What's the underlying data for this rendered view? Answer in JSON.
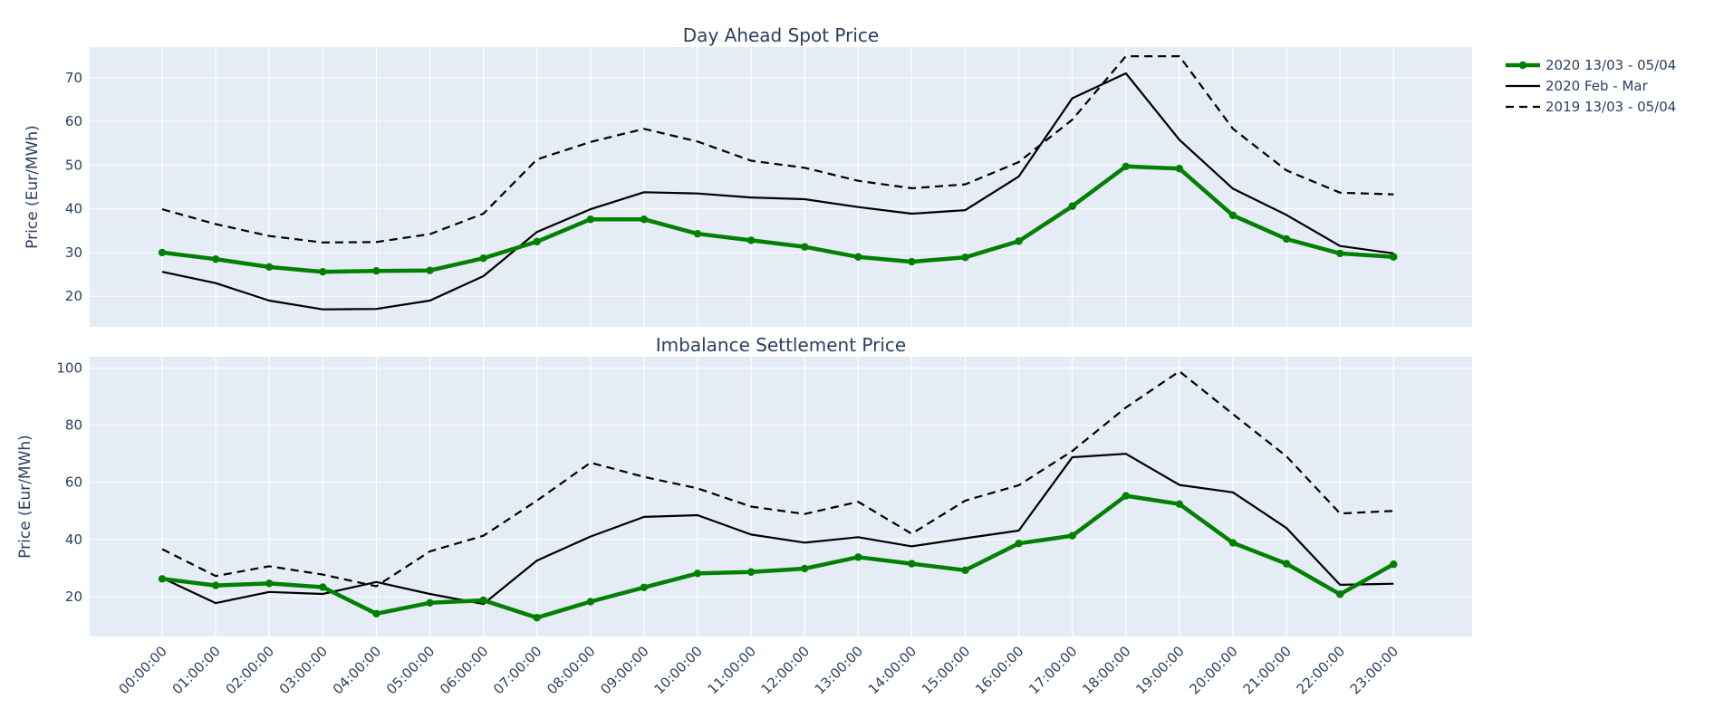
{
  "chart_data": [
    {
      "type": "line",
      "title": "Day Ahead Spot Price",
      "xlabel": "",
      "ylabel": "Price (Eur/MWh)",
      "ylim": [
        13,
        77
      ],
      "yticks": [
        20,
        30,
        40,
        50,
        60,
        70
      ],
      "grid": true,
      "legend_position": "top-right",
      "x": [
        "00:00:00",
        "01:00:00",
        "02:00:00",
        "03:00:00",
        "04:00:00",
        "05:00:00",
        "06:00:00",
        "07:00:00",
        "08:00:00",
        "09:00:00",
        "10:00:00",
        "11:00:00",
        "12:00:00",
        "13:00:00",
        "14:00:00",
        "15:00:00",
        "16:00:00",
        "17:00:00",
        "18:00:00",
        "19:00:00",
        "20:00:00",
        "21:00:00",
        "22:00:00",
        "23:00:00"
      ],
      "series": [
        {
          "name": "2020 13/03 - 05/04",
          "color": "#008000",
          "style": "solid-markers",
          "values": [
            30.0,
            28.5,
            26.7,
            25.6,
            25.8,
            25.9,
            28.7,
            32.5,
            37.6,
            37.6,
            34.3,
            32.8,
            31.3,
            29.0,
            27.9,
            28.9,
            32.6,
            40.6,
            49.7,
            49.2,
            38.5,
            33.1,
            29.8,
            29.0
          ]
        },
        {
          "name": "2020 Feb - Mar",
          "color": "#000000",
          "style": "solid",
          "values": [
            25.6,
            23.0,
            19.0,
            17.0,
            17.1,
            19.0,
            24.6,
            34.7,
            39.9,
            43.8,
            43.5,
            42.6,
            42.2,
            40.4,
            38.9,
            39.7,
            47.4,
            65.3,
            71.0,
            55.8,
            44.6,
            38.6,
            31.5,
            29.8
          ]
        },
        {
          "name": "2019 13/03 - 05/04",
          "color": "#000000",
          "style": "dashed",
          "values": [
            39.9,
            36.5,
            33.8,
            32.3,
            32.4,
            34.2,
            38.9,
            51.3,
            55.3,
            58.3,
            55.4,
            51.0,
            49.4,
            46.4,
            44.7,
            45.6,
            50.7,
            60.4,
            74.9,
            74.9,
            58.3,
            48.8,
            43.7,
            43.3
          ]
        }
      ]
    },
    {
      "type": "line",
      "title": "Imbalance Settlement Price",
      "xlabel": "",
      "ylabel": "Price (Eur/MWh)",
      "ylim": [
        6,
        104
      ],
      "yticks": [
        20,
        40,
        60,
        80,
        100
      ],
      "grid": true,
      "x": [
        "00:00:00",
        "01:00:00",
        "02:00:00",
        "03:00:00",
        "04:00:00",
        "05:00:00",
        "06:00:00",
        "07:00:00",
        "08:00:00",
        "09:00:00",
        "10:00:00",
        "11:00:00",
        "12:00:00",
        "13:00:00",
        "14:00:00",
        "15:00:00",
        "16:00:00",
        "17:00:00",
        "18:00:00",
        "19:00:00",
        "20:00:00",
        "21:00:00",
        "22:00:00",
        "23:00:00"
      ],
      "series": [
        {
          "name": "2020 13/03 - 05/04",
          "color": "#008000",
          "style": "solid-markers",
          "values": [
            26.2,
            23.9,
            24.6,
            23.3,
            14.0,
            17.8,
            18.7,
            12.6,
            18.2,
            23.2,
            28.1,
            28.6,
            29.8,
            33.8,
            31.5,
            29.2,
            38.6,
            41.3,
            55.3,
            52.4,
            38.8,
            31.5,
            20.8,
            31.3
          ]
        },
        {
          "name": "2020 Feb - Mar",
          "color": "#000000",
          "style": "solid",
          "values": [
            26.5,
            17.7,
            21.6,
            20.9,
            25.1,
            20.9,
            17.4,
            32.6,
            41.0,
            47.9,
            48.5,
            41.7,
            38.9,
            40.8,
            37.6,
            40.4,
            43.1,
            68.8,
            70.0,
            59.1,
            56.5,
            44.0,
            24.1,
            24.5
          ]
        },
        {
          "name": "2019 13/03 - 05/04",
          "color": "#000000",
          "style": "dashed",
          "values": [
            36.6,
            27.2,
            30.6,
            27.7,
            23.6,
            35.8,
            41.3,
            53.6,
            66.9,
            61.9,
            57.9,
            51.5,
            48.9,
            53.2,
            42.0,
            53.6,
            59.0,
            71.0,
            86.2,
            98.9,
            83.9,
            69.1,
            49.1,
            50.0
          ]
        }
      ]
    }
  ],
  "legend": {
    "items": [
      {
        "label": "2020 13/03 - 05/04",
        "color": "#008000",
        "style": "solid-markers"
      },
      {
        "label": "2020 Feb - Mar",
        "color": "#000000",
        "style": "solid"
      },
      {
        "label": "2019 13/03 - 05/04",
        "color": "#000000",
        "style": "dashed"
      }
    ]
  }
}
